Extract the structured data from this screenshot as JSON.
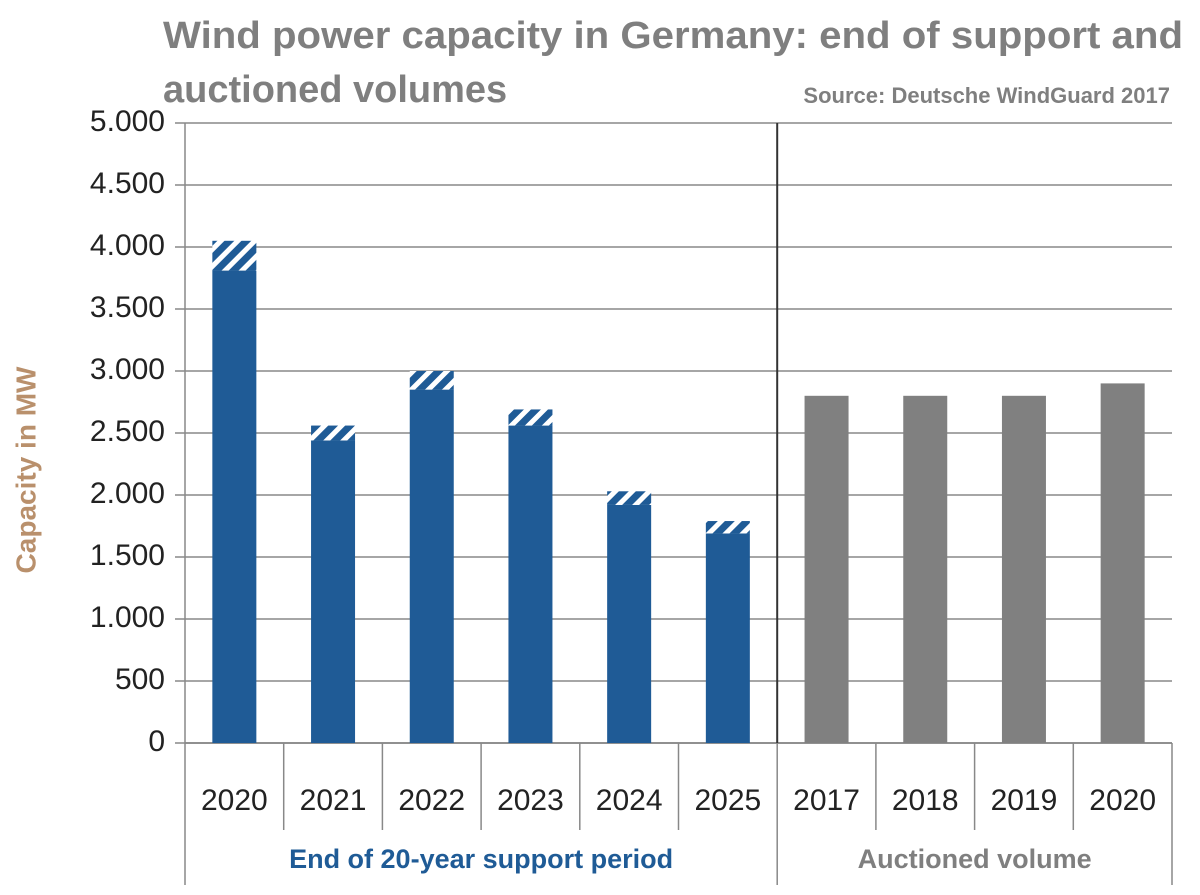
{
  "chart_data": {
    "type": "bar",
    "stacked": true,
    "title": [
      "Wind power capacity in Germany: end of support and",
      "auctioned volumes"
    ],
    "source": "Source: Deutsche WindGuard 2017",
    "y_label": "Capacity in MW",
    "categories": [
      "2020",
      "2021",
      "2022",
      "2023",
      "2024",
      "2025",
      "2017",
      "2018",
      "2019",
      "2020"
    ],
    "group_labels": [
      "End of 20-year support period",
      "Auctioned volume"
    ],
    "series": [
      {
        "color": "#1f5b96",
        "values": [
          3810,
          2440,
          2850,
          2560,
          1920,
          1690,
          null,
          null,
          null,
          null
        ]
      },
      {
        "color": "#1f5b96",
        "pattern": "hatch",
        "values": [
          240,
          120,
          150,
          130,
          110,
          100,
          null,
          null,
          null,
          null
        ]
      },
      {
        "color": "#808080",
        "values": [
          null,
          null,
          null,
          null,
          null,
          null,
          2800,
          2800,
          2800,
          2900
        ]
      }
    ],
    "ylim": [
      0,
      5000
    ],
    "yticks": [
      {
        "value": 0,
        "label": "0"
      },
      {
        "value": 500,
        "label": "500"
      },
      {
        "value": 1000,
        "label": "1.000"
      },
      {
        "value": 1500,
        "label": "1.500"
      },
      {
        "value": 2000,
        "label": "2.000"
      },
      {
        "value": 2500,
        "label": "2.500"
      },
      {
        "value": 3000,
        "label": "3.000"
      },
      {
        "value": 3500,
        "label": "3.500"
      },
      {
        "value": 4000,
        "label": "4.000"
      },
      {
        "value": 4500,
        "label": "4.500"
      },
      {
        "value": 5000,
        "label": "5.000"
      }
    ],
    "grid": true
  }
}
